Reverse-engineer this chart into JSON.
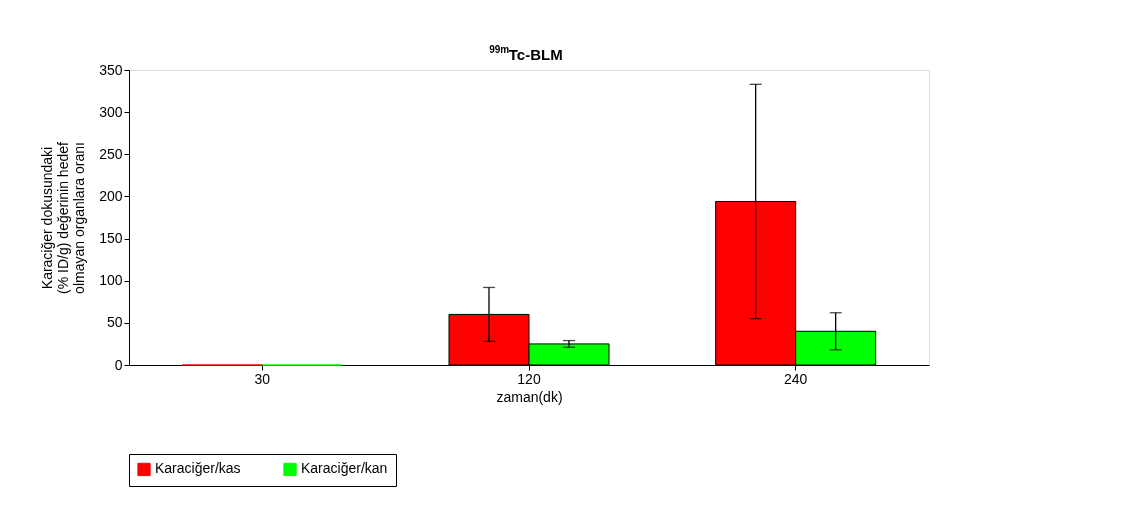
{
  "chart_data": {
    "type": "bar",
    "title": "$^{99m}$Tc-BLM",
    "xlabel": "zaman(dk)",
    "ylabel": "Karaciğer dokusundaki\n(% ID/g) değerinin hedef\nolmayan organlara oranı",
    "categories": [
      "30",
      "120",
      "240"
    ],
    "series": [
      {
        "name": "Karaciğer/kas",
        "color": "#ff0000",
        "values": [
          0,
          60,
          194
        ],
        "errors": [
          null,
          32,
          139
        ]
      },
      {
        "name": "Karaciğer/kan",
        "color": "#00ff00",
        "values": [
          0,
          25,
          40
        ],
        "errors": [
          null,
          4,
          22
        ]
      }
    ],
    "ylim": [
      0,
      350
    ],
    "yticks": [
      0,
      50,
      100,
      150,
      200,
      250,
      300,
      350
    ],
    "grid": false,
    "legend": "bottom"
  }
}
